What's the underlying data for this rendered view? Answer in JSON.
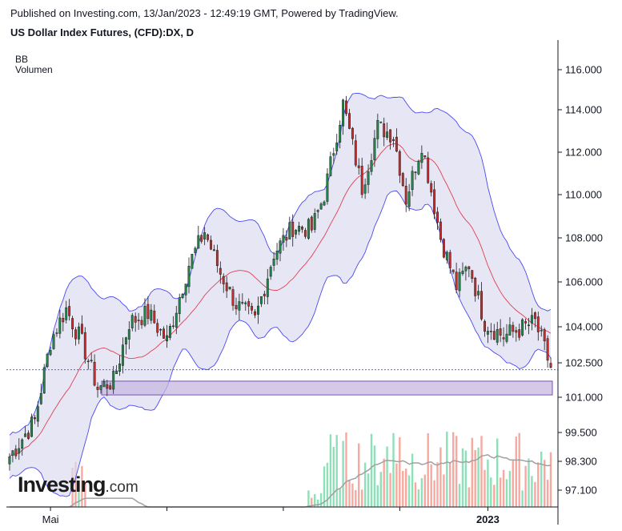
{
  "header": {
    "published": "Published on Investing.com, 13/Jan/2023 - 12:49:19 GMT, Powered by TradingView.",
    "title": "US Dollar Index Futures, (CFD):DX, D"
  },
  "indicators": [
    "BB",
    "Volumen"
  ],
  "logo": {
    "brand": "Investing",
    "suffix": ".com"
  },
  "colors": {
    "up": "#1f8a4c",
    "down": "#c8302f",
    "band_fill": "#dcdcf0",
    "band_line": "#4a4af0",
    "basis": "#e04050",
    "vol_up": "#8de0b8",
    "vol_down": "#f7a9a0",
    "vol_ma": "#a0a0a0",
    "zone_fill": "#c6b8e0",
    "zone_line": "#7c4fb8",
    "last_price_line": "#4a6fd6"
  },
  "chart_data": {
    "type": "candlestick",
    "y_axis": {
      "ticks": [
        116.0,
        114.0,
        112.0,
        110.0,
        108.0,
        106.0,
        104.0,
        102.5,
        101.0,
        99.5,
        98.3,
        97.1
      ],
      "tick_labels": [
        "116.000",
        "114.000",
        "112.000",
        "110.000",
        "108.000",
        "106.000",
        "104.000",
        "102.500",
        "101.000",
        "99.500",
        "98.300",
        "97.100"
      ]
    },
    "x_axis": {
      "tick_labels": [
        "Mai",
        "2023"
      ],
      "tick_index": [
        13,
        152
      ]
    },
    "last_price": 102.2,
    "zone": {
      "low": 101.1,
      "high": 101.7
    },
    "pivots": [
      [
        0,
        98.5
      ],
      [
        8,
        100.0
      ],
      [
        13,
        103.4
      ],
      [
        18,
        104.8
      ],
      [
        24,
        103.0
      ],
      [
        28,
        101.4
      ],
      [
        33,
        101.7
      ],
      [
        38,
        104.2
      ],
      [
        44,
        104.6
      ],
      [
        50,
        103.4
      ],
      [
        57,
        106.8
      ],
      [
        62,
        108.3
      ],
      [
        67,
        106.4
      ],
      [
        72,
        105.0
      ],
      [
        78,
        104.3
      ],
      [
        84,
        107.3
      ],
      [
        90,
        108.5
      ],
      [
        96,
        108.4
      ],
      [
        100,
        110.0
      ],
      [
        106,
        114.3
      ],
      [
        112,
        110.3
      ],
      [
        117,
        113.2
      ],
      [
        122,
        112.8
      ],
      [
        126,
        109.8
      ],
      [
        131,
        112.4
      ],
      [
        137,
        108.0
      ],
      [
        142,
        105.8
      ],
      [
        146,
        106.8
      ],
      [
        151,
        104.2
      ],
      [
        157,
        103.6
      ],
      [
        162,
        103.9
      ],
      [
        167,
        104.2
      ],
      [
        172,
        102.3
      ]
    ],
    "candle_count": 173,
    "volume_note": "Volume histogram shown near bottom; bars colored by candle direction; grey moving average"
  }
}
